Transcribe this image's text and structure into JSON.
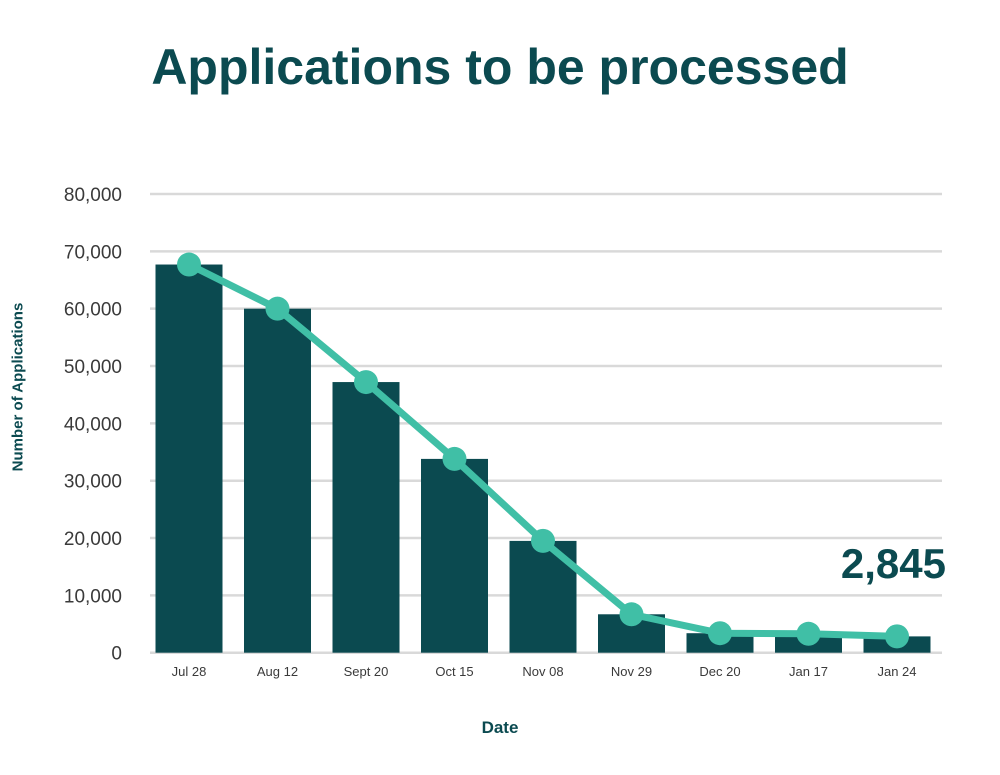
{
  "chart_data": {
    "type": "bar",
    "title": "Applications to be processed",
    "xlabel": "Date",
    "ylabel": "Number of Applications",
    "categories": [
      "Jul 28",
      "Aug 12",
      "Sept 20",
      "Oct 15",
      "Nov 08",
      "Nov 29",
      "Dec 20",
      "Jan 17",
      "Jan 24"
    ],
    "series": [
      {
        "type": "bar",
        "values": [
          67700,
          60000,
          47200,
          33800,
          19500,
          6700,
          3400,
          3300,
          2845
        ]
      },
      {
        "type": "line",
        "values": [
          67700,
          60000,
          47200,
          33800,
          19500,
          6700,
          3400,
          3300,
          2845
        ]
      }
    ],
    "ylim": [
      0,
      80000
    ],
    "yticks": [
      "0",
      "10,000",
      "20,000",
      "30,000",
      "40,000",
      "50,000",
      "60,000",
      "70,000",
      "80,000"
    ],
    "grid": true,
    "annotation": "2,845",
    "colors": {
      "bar": "#0b4a50",
      "line": "#40bfa6",
      "grid": "#d9d9d9",
      "text": "#0b4a50",
      "ticks": "#3a3a3a"
    }
  }
}
